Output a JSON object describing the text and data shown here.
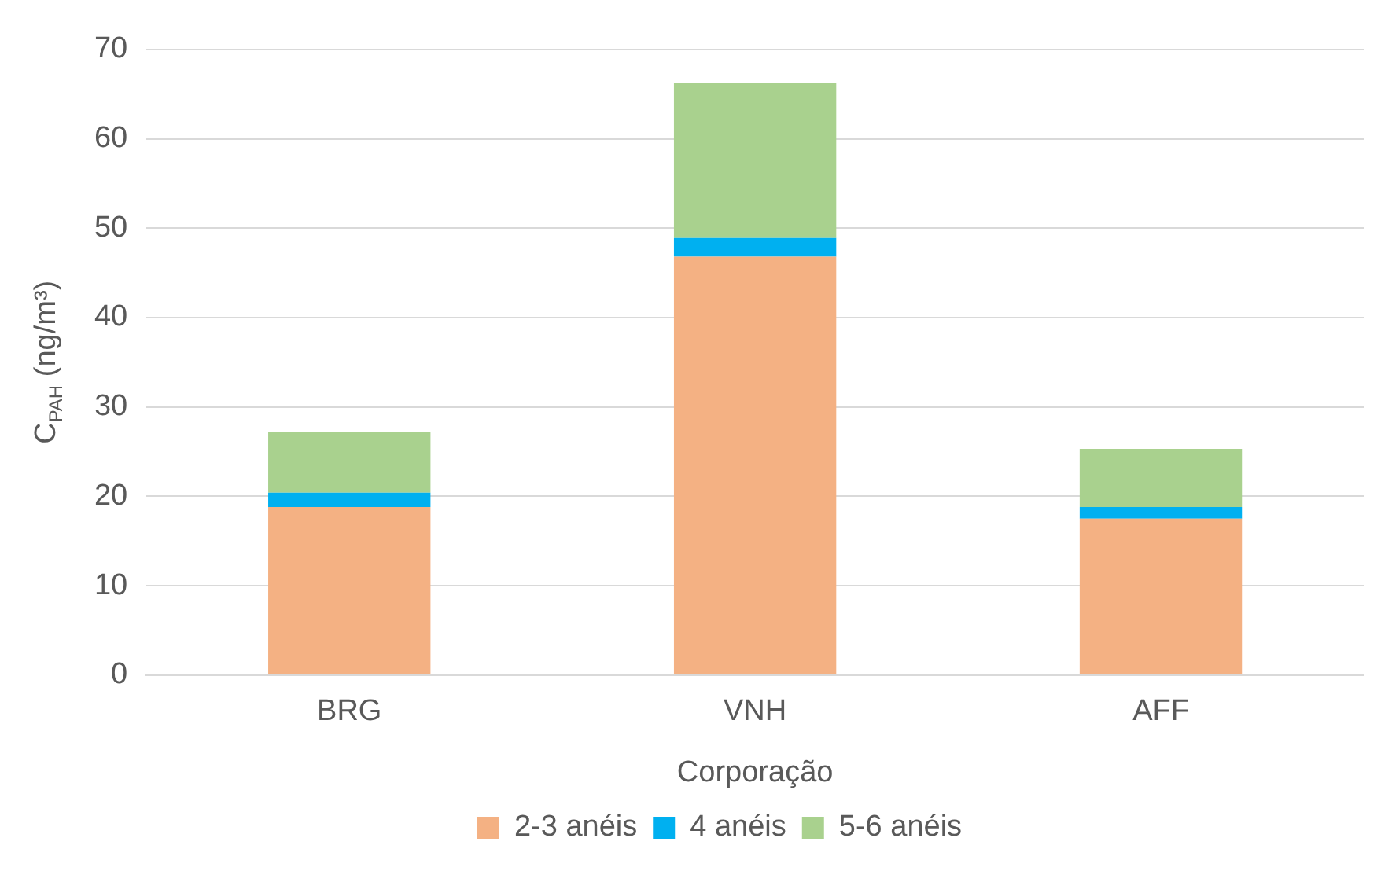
{
  "chart_data": {
    "type": "bar",
    "stacked": true,
    "xlabel": "Corporação",
    "ylabel": "C$_{PAH}$ (ng/m³)",
    "categories": [
      "BRG",
      "VNH",
      "AFF"
    ],
    "series": [
      {
        "name": "2-3 anéis",
        "color": "#f4b183",
        "values": [
          18.8,
          46.8,
          17.5
        ]
      },
      {
        "name": "4 anéis",
        "color": "#00b0f0",
        "values": [
          1.6,
          2.1,
          1.3
        ]
      },
      {
        "name": "5-6 anéis",
        "color": "#a9d18e",
        "values": [
          6.8,
          17.3,
          6.5
        ]
      }
    ],
    "ylim": [
      0,
      70
    ],
    "yticks": [
      0,
      10,
      20,
      30,
      40,
      50,
      60,
      70
    ],
    "grid": "y",
    "legend": "bottom"
  }
}
